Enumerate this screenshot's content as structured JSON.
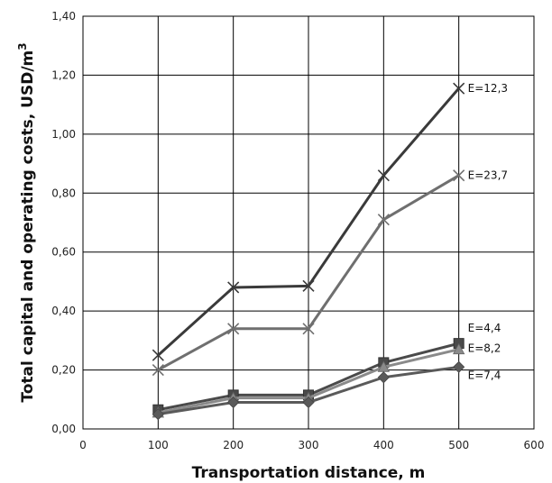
{
  "chart_data": {
    "type": "line",
    "xlabel": "Transportation distance, m",
    "ylabel": "Total capital and operating costs, USD/m",
    "ylabel_sup": "3",
    "xlim": [
      0,
      600
    ],
    "ylim": [
      0,
      1.4
    ],
    "x_ticks": [
      0,
      100,
      200,
      300,
      400,
      500,
      600
    ],
    "x_tick_labels": [
      "0",
      "100",
      "200",
      "300",
      "400",
      "500",
      "600"
    ],
    "y_ticks": [
      0,
      0.2,
      0.4,
      0.6,
      0.8,
      1.0,
      1.2,
      1.4
    ],
    "y_tick_labels": [
      "0,00",
      "0,20",
      "0,40",
      "0,60",
      "0,80",
      "1,00",
      "1,20",
      "1,40"
    ],
    "grid": true,
    "x": [
      100,
      200,
      300,
      400,
      500
    ],
    "series": [
      {
        "name": "E=12,3",
        "values": [
          0.25,
          0.48,
          0.485,
          0.86,
          1.155
        ],
        "color": "#3a3a3a",
        "marker": "x"
      },
      {
        "name": "E=23,7",
        "values": [
          0.2,
          0.34,
          0.34,
          0.71,
          0.86
        ],
        "color": "#6f6f6f",
        "marker": "x"
      },
      {
        "name": "E=4,4",
        "values": [
          0.065,
          0.115,
          0.115,
          0.225,
          0.29
        ],
        "color": "#4a4a4a",
        "marker": "square"
      },
      {
        "name": "E=8,2",
        "values": [
          0.055,
          0.105,
          0.105,
          0.21,
          0.27
        ],
        "color": "#8a8a8a",
        "marker": "triangle"
      },
      {
        "name": "E=7,4",
        "values": [
          0.05,
          0.09,
          0.09,
          0.175,
          0.21
        ],
        "color": "#5a5a5a",
        "marker": "diamond"
      }
    ]
  }
}
